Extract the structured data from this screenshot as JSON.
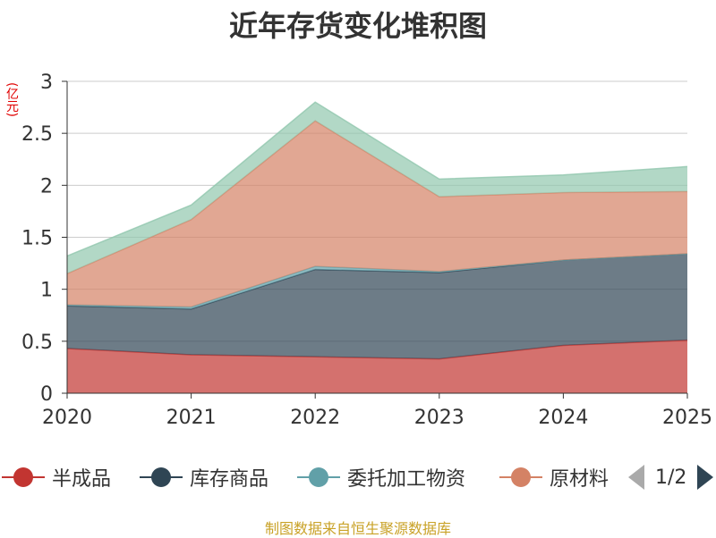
{
  "chart_data": {
    "type": "area",
    "stacked": true,
    "title": "近年存货变化堆积图",
    "unit_label": "(亿元)",
    "x": [
      "2020",
      "2021",
      "2022",
      "2023",
      "2024",
      "2025"
    ],
    "ylim": [
      0,
      3
    ],
    "y_ticks": [
      "0",
      "0.5",
      "1",
      "1.5",
      "2",
      "2.5",
      "3"
    ],
    "grid": true,
    "legend_position": "bottom",
    "series": [
      {
        "name": "半成品",
        "color": "#c23531",
        "values": [
          0.43,
          0.37,
          0.35,
          0.33,
          0.46,
          0.51
        ]
      },
      {
        "name": "库存商品",
        "color": "#2f4554",
        "values": [
          0.41,
          0.44,
          0.84,
          0.83,
          0.82,
          0.83
        ]
      },
      {
        "name": "委托加工物资",
        "color": "#61a0a8",
        "values": [
          0.01,
          0.02,
          0.03,
          0.01,
          0.0,
          0.0
        ]
      },
      {
        "name": "原材料",
        "color": "#d48265",
        "values": [
          0.3,
          0.84,
          1.4,
          0.72,
          0.65,
          0.6
        ]
      },
      {
        "name": "",
        "color": "#91c7ae",
        "values": [
          0.17,
          0.14,
          0.18,
          0.17,
          0.17,
          0.24
        ]
      }
    ]
  },
  "legend": {
    "items": [
      {
        "label": "半成品",
        "color": "#c23531"
      },
      {
        "label": "库存商品",
        "color": "#2f4554"
      },
      {
        "label": "委托加工物资",
        "color": "#61a0a8"
      },
      {
        "label": "原材料",
        "color": "#d48265"
      }
    ],
    "page_text": "1/2"
  },
  "source_text": "制图数据来自恒生聚源数据库"
}
